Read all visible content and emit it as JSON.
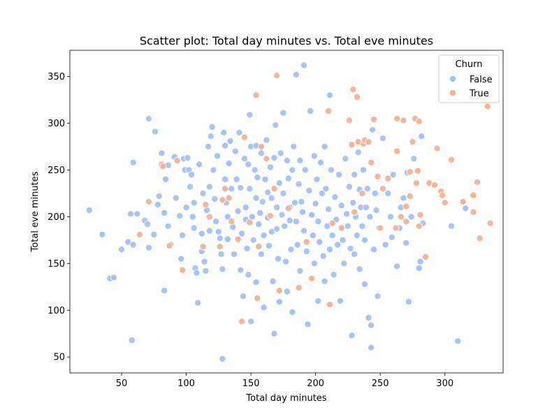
{
  "chart_data": {
    "type": "scatter",
    "title": "Scatter plot: Total day minutes vs. Total eve minutes",
    "xlabel": "Total day minutes",
    "ylabel": "Total eve minutes",
    "xlim": [
      10,
      345
    ],
    "ylim": [
      33,
      378
    ],
    "xticks": [
      50,
      100,
      150,
      200,
      250,
      300
    ],
    "yticks": [
      50,
      100,
      150,
      200,
      250,
      300,
      350
    ],
    "grid": false,
    "legend": {
      "title": "Churn",
      "placement": "top-right"
    },
    "series": [
      {
        "name": "False",
        "color": "#a7c3f7",
        "points": [
          [
            25,
            207
          ],
          [
            35,
            181
          ],
          [
            41,
            134
          ],
          [
            44,
            135
          ],
          [
            50,
            165
          ],
          [
            55,
            173
          ],
          [
            57,
            203
          ],
          [
            58,
            68
          ],
          [
            59,
            258
          ],
          [
            59,
            170
          ],
          [
            62,
            203
          ],
          [
            68,
            196
          ],
          [
            70,
            192
          ],
          [
            71,
            167
          ],
          [
            71,
            305
          ],
          [
            75,
            181
          ],
          [
            76,
            291
          ],
          [
            78,
            213
          ],
          [
            79,
            222
          ],
          [
            81,
            268
          ],
          [
            83,
            204
          ],
          [
            83,
            121
          ],
          [
            84,
            240
          ],
          [
            86,
            255
          ],
          [
            86,
            190
          ],
          [
            88,
            170
          ],
          [
            91,
            264
          ],
          [
            92,
            220
          ],
          [
            95,
            201
          ],
          [
            96,
            155
          ],
          [
            97,
            180
          ],
          [
            98,
            262
          ],
          [
            99,
            250
          ],
          [
            100,
            210
          ],
          [
            101,
            263
          ],
          [
            102,
            250
          ],
          [
            103,
            232
          ],
          [
            104,
            245
          ],
          [
            105,
            200
          ],
          [
            106,
            215
          ],
          [
            106,
            188
          ],
          [
            107,
            145
          ],
          [
            108,
            140
          ],
          [
            109,
            108
          ],
          [
            110,
            256
          ],
          [
            112,
            182
          ],
          [
            112,
            163
          ],
          [
            113,
            225
          ],
          [
            114,
            152
          ],
          [
            115,
            142
          ],
          [
            116,
            207
          ],
          [
            117,
            275
          ],
          [
            118,
            232
          ],
          [
            118,
            185
          ],
          [
            119,
            286
          ],
          [
            120,
            296
          ],
          [
            121,
            250
          ],
          [
            122,
            219
          ],
          [
            123,
            195
          ],
          [
            124,
            265
          ],
          [
            125,
            184
          ],
          [
            126,
            177
          ],
          [
            127,
            160
          ],
          [
            128,
            144
          ],
          [
            128,
            48
          ],
          [
            129,
            290
          ],
          [
            130,
            276
          ],
          [
            130,
            240
          ],
          [
            131,
            215
          ],
          [
            132,
            200
          ],
          [
            132,
            176
          ],
          [
            133,
            257
          ],
          [
            134,
            281
          ],
          [
            135,
            230
          ],
          [
            136,
            189
          ],
          [
            137,
            160
          ],
          [
            138,
            270
          ],
          [
            139,
            240
          ],
          [
            140,
            206
          ],
          [
            140,
            175
          ],
          [
            141,
            290
          ],
          [
            142,
            231
          ],
          [
            142,
            143
          ],
          [
            143,
            182
          ],
          [
            144,
            115
          ],
          [
            145,
            262
          ],
          [
            146,
            210
          ],
          [
            146,
            197
          ],
          [
            147,
            166
          ],
          [
            148,
            256
          ],
          [
            148,
            138
          ],
          [
            149,
            309
          ],
          [
            149,
            230
          ],
          [
            150,
            275
          ],
          [
            150,
            88
          ],
          [
            151,
            200
          ],
          [
            152,
            175
          ],
          [
            153,
            250
          ],
          [
            154,
            276
          ],
          [
            154,
            220
          ],
          [
            154,
            130
          ],
          [
            155,
            242
          ],
          [
            156,
            192
          ],
          [
            157,
            204
          ],
          [
            158,
            160
          ],
          [
            158,
            268
          ],
          [
            159,
            216
          ],
          [
            160,
            180
          ],
          [
            160,
            103
          ],
          [
            161,
            240
          ],
          [
            162,
            282
          ],
          [
            163,
            226
          ],
          [
            163,
            199
          ],
          [
            164,
            169
          ],
          [
            165,
            253
          ],
          [
            166,
            220
          ],
          [
            166,
            184
          ],
          [
            167,
            131
          ],
          [
            168,
            263
          ],
          [
            168,
            75
          ],
          [
            169,
            298
          ],
          [
            170,
            210
          ],
          [
            170,
            187
          ],
          [
            171,
            155
          ],
          [
            172,
            236
          ],
          [
            172,
            109
          ],
          [
            173,
            268
          ],
          [
            174,
            202
          ],
          [
            175,
            311
          ],
          [
            175,
            225
          ],
          [
            176,
            190
          ],
          [
            177,
            152
          ],
          [
            178,
            260
          ],
          [
            178,
            120
          ],
          [
            179,
            241
          ],
          [
            180,
            210
          ],
          [
            180,
            196
          ],
          [
            181,
            165
          ],
          [
            182,
            250
          ],
          [
            182,
            98
          ],
          [
            183,
            275
          ],
          [
            184,
            215
          ],
          [
            185,
            352
          ],
          [
            185,
            195
          ],
          [
            186,
            170
          ],
          [
            187,
            235
          ],
          [
            188,
            260
          ],
          [
            188,
            142
          ],
          [
            189,
            216
          ],
          [
            190,
            205
          ],
          [
            191,
            362
          ],
          [
            191,
            185
          ],
          [
            192,
            250
          ],
          [
            193,
            163
          ],
          [
            194,
            85
          ],
          [
            195,
            228
          ],
          [
            196,
            313
          ],
          [
            197,
            202
          ],
          [
            198,
            180
          ],
          [
            199,
            265
          ],
          [
            199,
            150
          ],
          [
            200,
            214
          ],
          [
            201,
            240
          ],
          [
            202,
            195
          ],
          [
            202,
            110
          ],
          [
            203,
            173
          ],
          [
            204,
            258
          ],
          [
            205,
            225
          ],
          [
            206,
            158
          ],
          [
            207,
            131
          ],
          [
            207,
            275
          ],
          [
            208,
            230
          ],
          [
            209,
            190
          ],
          [
            210,
            208
          ],
          [
            211,
            330
          ],
          [
            211,
            165
          ],
          [
            212,
            250
          ],
          [
            213,
            180
          ],
          [
            214,
            138
          ],
          [
            215,
            221
          ],
          [
            216,
            197
          ],
          [
            217,
            170
          ],
          [
            218,
            245
          ],
          [
            219,
            110
          ],
          [
            220,
            212
          ],
          [
            221,
            175
          ],
          [
            222,
            150
          ],
          [
            223,
            262
          ],
          [
            224,
            203
          ],
          [
            225,
            190
          ],
          [
            226,
            232
          ],
          [
            227,
            166
          ],
          [
            228,
            73
          ],
          [
            229,
            215
          ],
          [
            230,
            245
          ],
          [
            230,
            160
          ],
          [
            231,
            200
          ],
          [
            232,
            180
          ],
          [
            233,
            269
          ],
          [
            234,
            229
          ],
          [
            234,
            144
          ],
          [
            235,
            210
          ],
          [
            236,
            190
          ],
          [
            237,
            250
          ],
          [
            238,
            128
          ],
          [
            238,
            175
          ],
          [
            239,
            210
          ],
          [
            240,
            230
          ],
          [
            241,
            92
          ],
          [
            242,
            200
          ],
          [
            243,
            60
          ],
          [
            243,
            84
          ],
          [
            244,
            293
          ],
          [
            245,
            165
          ],
          [
            246,
            225
          ],
          [
            247,
            207
          ],
          [
            248,
            115
          ],
          [
            249,
            188
          ],
          [
            252,
            284
          ],
          [
            254,
            170
          ],
          [
            256,
            225
          ],
          [
            258,
            200
          ],
          [
            259,
            178
          ],
          [
            260,
            245
          ],
          [
            263,
            147
          ],
          [
            265,
            188
          ],
          [
            266,
            210
          ],
          [
            268,
            220
          ],
          [
            270,
            172
          ],
          [
            271,
            247
          ],
          [
            272,
            109
          ],
          [
            274,
            200
          ],
          [
            276,
            262
          ],
          [
            278,
            235
          ],
          [
            280,
            145
          ],
          [
            281,
            152
          ],
          [
            282,
            286
          ],
          [
            283,
            193
          ],
          [
            300,
            215
          ],
          [
            305,
            190
          ],
          [
            310,
            67
          ],
          [
            316,
            209
          ]
        ]
      },
      {
        "name": "True",
        "color": "#f4b59a",
        "points": [
          [
            64,
            181
          ],
          [
            71,
            216
          ],
          [
            81,
            256
          ],
          [
            82,
            254
          ],
          [
            87,
            169
          ],
          [
            93,
            260
          ],
          [
            97,
            143
          ],
          [
            113,
            168
          ],
          [
            115,
            213
          ],
          [
            118,
            200
          ],
          [
            126,
            168
          ],
          [
            128,
            218
          ],
          [
            130,
            230
          ],
          [
            133,
            220
          ],
          [
            135,
            195
          ],
          [
            140,
            176
          ],
          [
            143,
            88
          ],
          [
            145,
            285
          ],
          [
            149,
            194
          ],
          [
            154,
            330
          ],
          [
            155,
            113
          ],
          [
            156,
            168
          ],
          [
            158,
            275
          ],
          [
            162,
            262
          ],
          [
            165,
            201
          ],
          [
            168,
            230
          ],
          [
            170,
            351
          ],
          [
            172,
            121
          ],
          [
            179,
            209
          ],
          [
            187,
            124
          ],
          [
            193,
            173
          ],
          [
            197,
            134
          ],
          [
            210,
            313
          ],
          [
            211,
            106
          ],
          [
            213,
            193
          ],
          [
            220,
            188
          ],
          [
            226,
            303
          ],
          [
            228,
            277
          ],
          [
            229,
            336
          ],
          [
            230,
            205
          ],
          [
            232,
            328
          ],
          [
            233,
            280
          ],
          [
            236,
            225
          ],
          [
            237,
            278
          ],
          [
            238,
            282
          ],
          [
            241,
            280
          ],
          [
            243,
            258
          ],
          [
            245,
            304
          ],
          [
            248,
            243
          ],
          [
            250,
            188
          ],
          [
            252,
            230
          ],
          [
            256,
            241
          ],
          [
            262,
            188
          ],
          [
            263,
            305
          ],
          [
            266,
            200
          ],
          [
            268,
            303
          ],
          [
            270,
            195
          ],
          [
            273,
            222
          ],
          [
            275,
            280
          ],
          [
            277,
            305
          ],
          [
            278,
            236
          ],
          [
            280,
            190
          ],
          [
            280,
            302
          ],
          [
            281,
            202
          ],
          [
            285,
            157
          ],
          [
            288,
            236
          ],
          [
            292,
            234
          ],
          [
            294,
            273
          ],
          [
            297,
            227
          ],
          [
            298,
            223
          ],
          [
            300,
            215
          ],
          [
            305,
            261
          ],
          [
            314,
            216
          ],
          [
            322,
            223
          ],
          [
            322,
            205
          ],
          [
            325,
            237
          ],
          [
            327,
            177
          ],
          [
            333,
            318
          ],
          [
            335,
            193
          ],
          [
            263,
            270
          ],
          [
            270,
            211
          ],
          [
            273,
            248
          ],
          [
            279,
            249
          ]
        ]
      }
    ]
  }
}
